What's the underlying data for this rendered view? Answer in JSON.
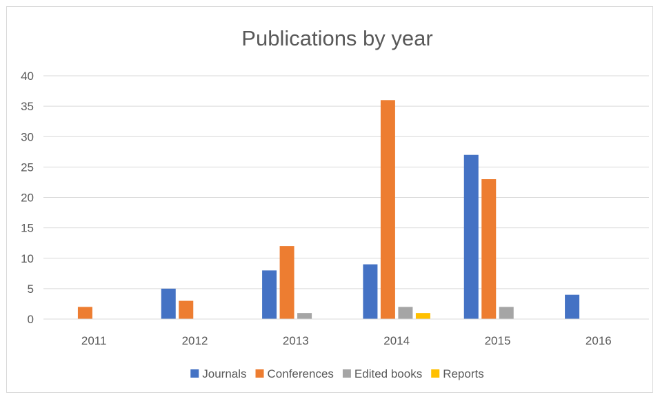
{
  "chart_data": {
    "type": "bar",
    "title": "Publications by year",
    "categories": [
      "2011",
      "2012",
      "2013",
      "2014",
      "2015",
      "2016"
    ],
    "series": [
      {
        "name": "Journals",
        "color": "#4472c4",
        "values": [
          0,
          5,
          8,
          9,
          27,
          4
        ]
      },
      {
        "name": "Conferences",
        "color": "#ed7d31",
        "values": [
          2,
          3,
          12,
          36,
          23,
          0
        ]
      },
      {
        "name": "Edited books",
        "color": "#a5a5a5",
        "values": [
          0,
          0,
          1,
          2,
          2,
          0
        ]
      },
      {
        "name": "Reports",
        "color": "#ffc000",
        "values": [
          0,
          0,
          0,
          1,
          0,
          0
        ]
      }
    ],
    "ylim": [
      0,
      40
    ],
    "yticks": [
      "0",
      "5",
      "10",
      "15",
      "20",
      "25",
      "30",
      "35",
      "40"
    ],
    "grid": true,
    "legend_position": "bottom"
  }
}
